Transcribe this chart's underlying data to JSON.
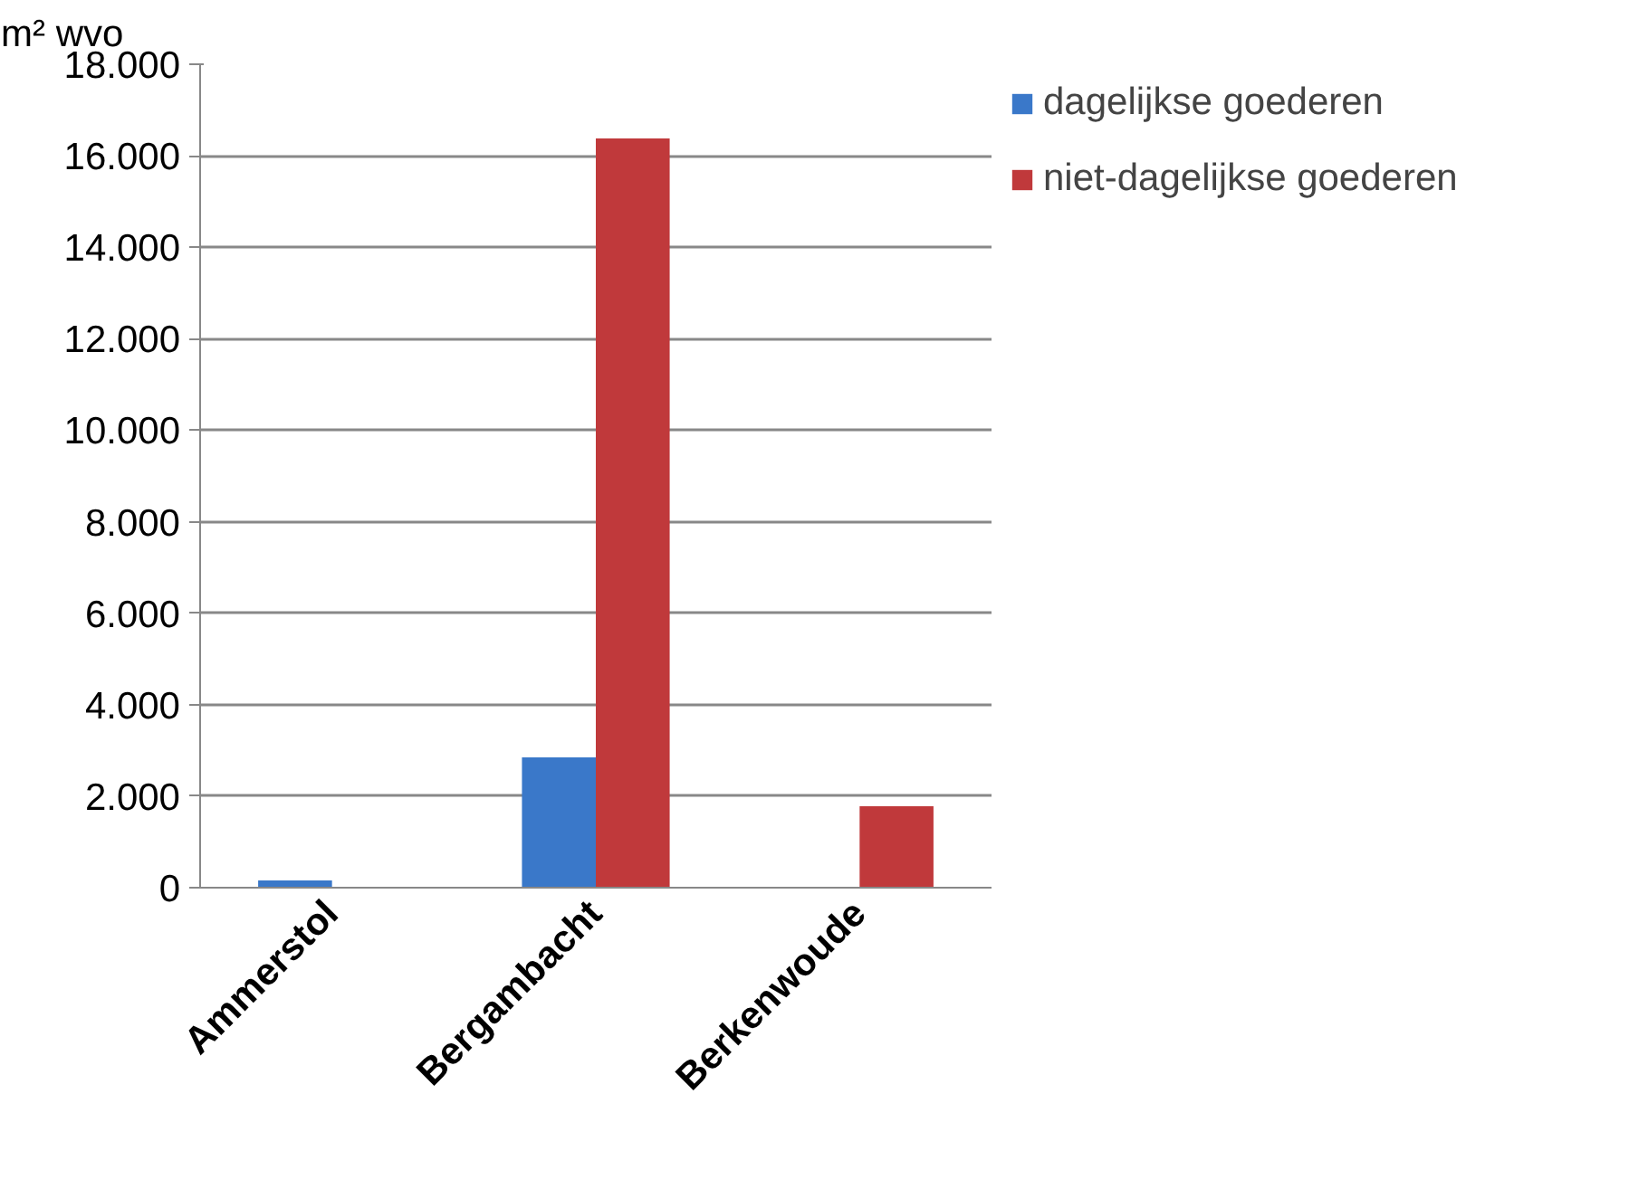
{
  "chart_data": {
    "type": "bar",
    "ylabel": "m² wvo",
    "categories": [
      "Ammerstol",
      "Bergambacht",
      "Berkenwoude"
    ],
    "series": [
      {
        "name": "dagelijkse goederen",
        "color": "#3a78c9",
        "values": [
          160,
          2850,
          null
        ]
      },
      {
        "name": "niet-dagelijkse goederen",
        "color": "#c0393b",
        "values": [
          null,
          16380,
          1780
        ]
      }
    ],
    "ylim": [
      0,
      18000
    ],
    "yticks": [
      {
        "value": 0,
        "label": "0"
      },
      {
        "value": 2000,
        "label": "2.000"
      },
      {
        "value": 4000,
        "label": "4.000"
      },
      {
        "value": 6000,
        "label": "6.000"
      },
      {
        "value": 8000,
        "label": "8.000"
      },
      {
        "value": 10000,
        "label": "10.000"
      },
      {
        "value": 12000,
        "label": "12.000"
      },
      {
        "value": 14000,
        "label": "14.000"
      },
      {
        "value": 16000,
        "label": "16.000"
      },
      {
        "value": 18000,
        "label": "18.000"
      }
    ],
    "grid": "y",
    "legend": "top right"
  }
}
